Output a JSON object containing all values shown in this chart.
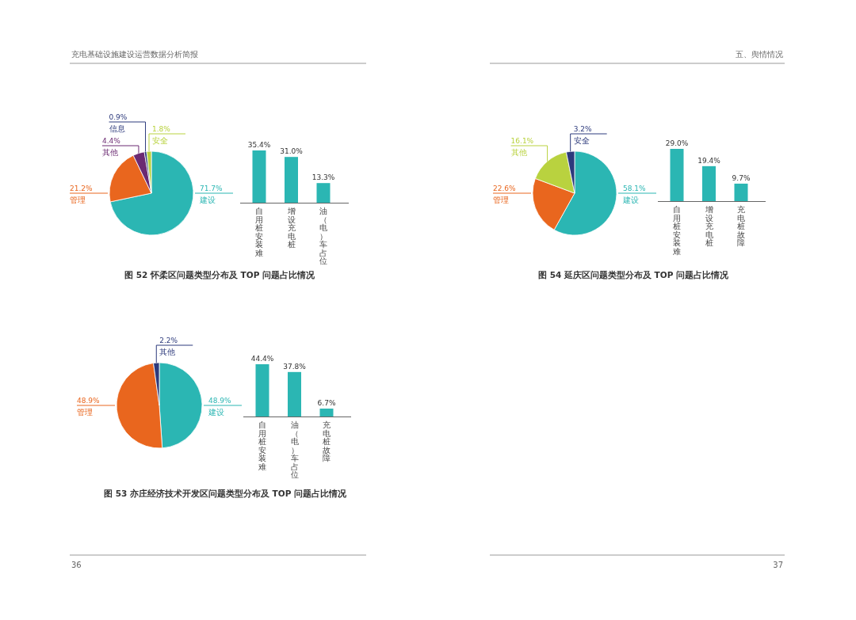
{
  "chart_data": [
    {
      "type": "other",
      "annotations": [
        "充电基础设施建设运营数据分析简报",
        "五、舆情情况",
        "36",
        "37"
      ]
    },
    {
      "type": "pie",
      "title": "图 52 怀柔区问题类型分布及 TOP 问题占比情况",
      "categories": [
        "建设",
        "管理",
        "其他",
        "信息",
        "安全"
      ],
      "values": [
        71.7,
        21.2,
        4.4,
        0.9,
        1.8
      ],
      "colors": [
        "#2bb6b3",
        "#e9661e",
        "#6b2a72",
        "#2d3a7c",
        "#b9d23f"
      ],
      "value_labels": [
        "71.7%",
        "21.2%",
        "4.4%",
        "0.9%",
        "1.8%"
      ]
    },
    {
      "type": "bar",
      "categories": [
        "自用桩安装难",
        "增设充电桩",
        "油（电）车占位"
      ],
      "values": [
        35.4,
        31.0,
        13.3
      ],
      "color": "#2bb6b3",
      "value_labels": [
        "35.4%",
        "31.0%",
        "13.3%"
      ]
    },
    {
      "type": "pie",
      "title": "图 53 亦庄经济技术开发区问题类型分布及 TOP 问题占比情况",
      "categories": [
        "建设",
        "管理",
        "其他"
      ],
      "values": [
        48.9,
        48.9,
        2.2
      ],
      "colors": [
        "#2bb6b3",
        "#e9661e",
        "#2d3a7c"
      ],
      "value_labels": [
        "48.9%",
        "48.9%",
        "2.2%"
      ]
    },
    {
      "type": "bar",
      "categories": [
        "自用桩安装难",
        "油（电）车占位",
        "充电桩故障"
      ],
      "values": [
        44.4,
        37.8,
        6.7
      ],
      "color": "#2bb6b3",
      "value_labels": [
        "44.4%",
        "37.8%",
        "6.7%"
      ]
    },
    {
      "type": "pie",
      "title": "图 54 延庆区问题类型分布及 TOP 问题占比情况",
      "categories": [
        "建设",
        "管理",
        "其他",
        "安全"
      ],
      "values": [
        58.1,
        22.6,
        16.1,
        3.2
      ],
      "colors": [
        "#2bb6b3",
        "#e9661e",
        "#b9d23f",
        "#2d3a7c"
      ],
      "value_labels": [
        "58.1%",
        "22.6%",
        "16.1%",
        "3.2%"
      ]
    },
    {
      "type": "bar",
      "categories": [
        "自用桩安装难",
        "增设充电桩",
        "充电桩故障"
      ],
      "values": [
        29.0,
        19.4,
        9.7
      ],
      "color": "#2bb6b3",
      "value_labels": [
        "29.0%",
        "19.4%",
        "9.7%"
      ]
    }
  ]
}
